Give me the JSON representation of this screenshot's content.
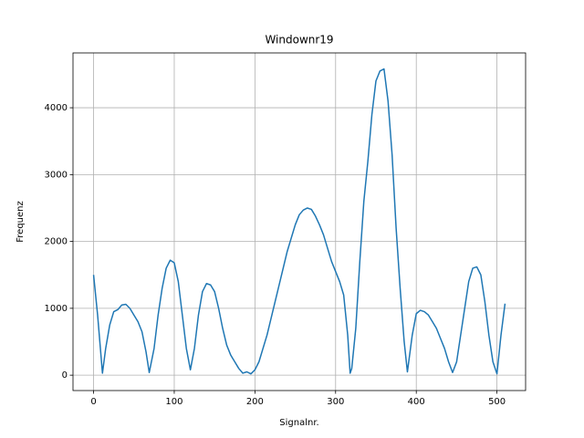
{
  "chart_data": {
    "type": "line",
    "title": "Windownr19",
    "xlabel": "Signalnr.",
    "ylabel": "Frequenz",
    "x": [
      0,
      5,
      11,
      15,
      20,
      25,
      30,
      35,
      40,
      45,
      50,
      55,
      60,
      65,
      69,
      75,
      80,
      85,
      90,
      95,
      100,
      105,
      110,
      115,
      120,
      125,
      130,
      135,
      140,
      145,
      150,
      155,
      160,
      165,
      170,
      175,
      180,
      185,
      190,
      195,
      200,
      205,
      210,
      215,
      220,
      225,
      230,
      235,
      240,
      245,
      250,
      255,
      260,
      265,
      270,
      275,
      280,
      285,
      290,
      295,
      300,
      305,
      310,
      315,
      318,
      320,
      325,
      330,
      335,
      340,
      345,
      350,
      355,
      360,
      365,
      370,
      375,
      380,
      385,
      389,
      395,
      400,
      405,
      410,
      415,
      420,
      425,
      430,
      435,
      440,
      445,
      450,
      455,
      460,
      465,
      470,
      475,
      480,
      485,
      490,
      495,
      500,
      505,
      510
    ],
    "values": [
      1500,
      900,
      30,
      400,
      750,
      950,
      980,
      1050,
      1060,
      1000,
      900,
      800,
      650,
      350,
      40,
      400,
      900,
      1300,
      1600,
      1720,
      1680,
      1400,
      900,
      400,
      80,
      400,
      900,
      1250,
      1370,
      1350,
      1250,
      1000,
      700,
      450,
      300,
      200,
      100,
      30,
      50,
      20,
      80,
      200,
      400,
      600,
      850,
      1100,
      1350,
      1600,
      1850,
      2050,
      2250,
      2400,
      2470,
      2500,
      2480,
      2380,
      2250,
      2100,
      1900,
      1700,
      1550,
      1400,
      1200,
      600,
      30,
      100,
      700,
      1700,
      2600,
      3200,
      3900,
      4400,
      4550,
      4580,
      4100,
      3300,
      2200,
      1300,
      500,
      50,
      600,
      920,
      970,
      950,
      900,
      800,
      700,
      550,
      400,
      200,
      40,
      200,
      600,
      1000,
      1400,
      1600,
      1620,
      1500,
      1100,
      600,
      200,
      20,
      600,
      1070
    ],
    "color": "#1f77b4",
    "xlim": [
      -25.5,
      535.5
    ],
    "xticks": [
      0,
      100,
      200,
      300,
      400,
      500
    ],
    "ylim": [
      -230,
      4820
    ],
    "yticks": [
      0,
      1000,
      2000,
      3000,
      4000
    ],
    "grid": true
  }
}
